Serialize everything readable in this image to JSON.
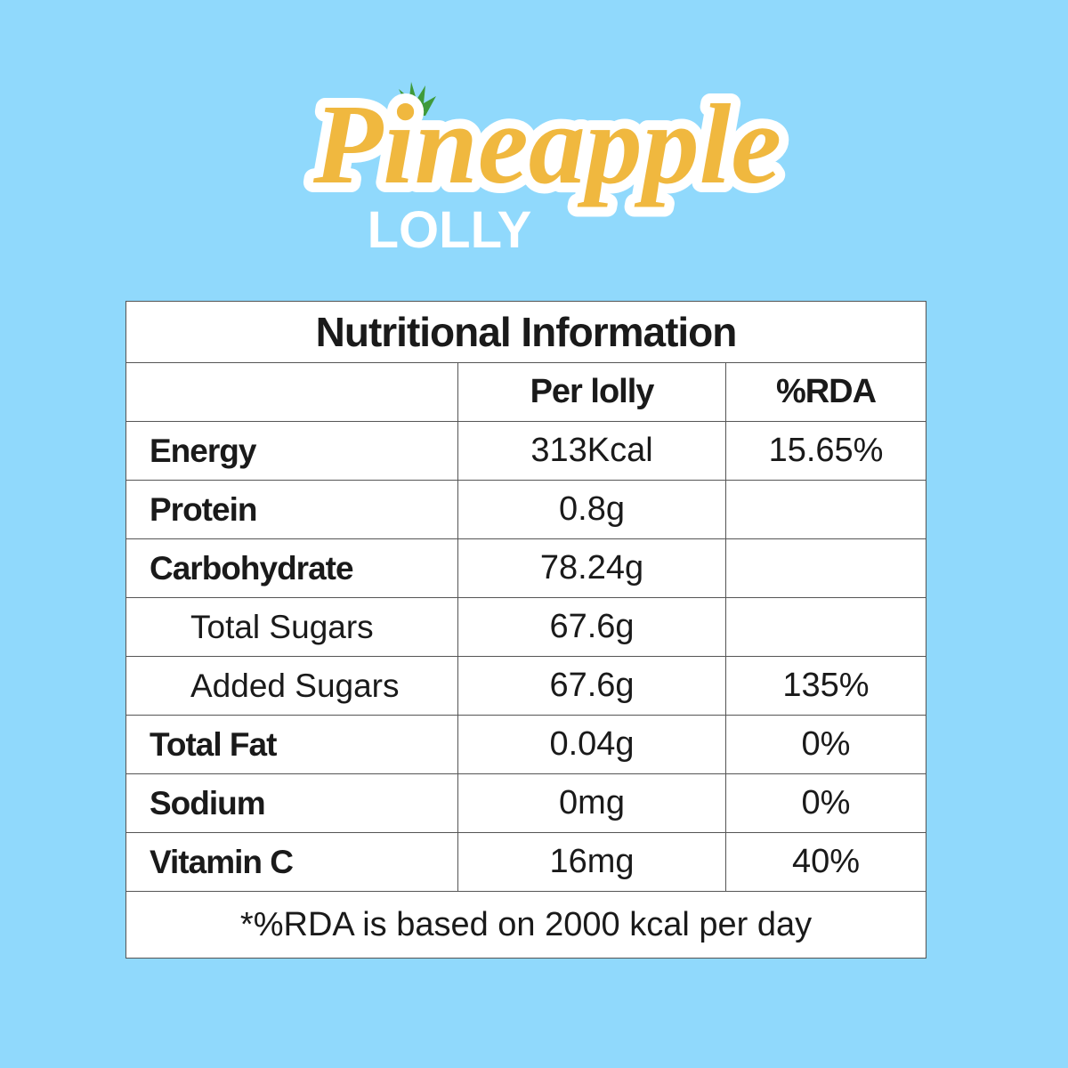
{
  "header": {
    "title": "Pineapple",
    "subtitle": "LOLLY"
  },
  "table": {
    "title": "Nutritional Information",
    "columns": [
      "Per lolly",
      "%RDA"
    ],
    "rows": [
      {
        "name": "Energy",
        "amount": "313Kcal",
        "rda": "15.65%"
      },
      {
        "name": "Protein",
        "amount": "0.8g"
      },
      {
        "name": "Carbohydrate",
        "amount": "78.24g"
      },
      {
        "name": "Total Sugars",
        "amount": "67.6g",
        "indent": true
      },
      {
        "name": "Added Sugars",
        "amount": "67.6g",
        "rda": "135%",
        "indent": true
      },
      {
        "name": "Total Fat",
        "amount": "0.04g",
        "rda": "0%"
      },
      {
        "name": "Sodium",
        "amount": "0mg",
        "rda": "0%"
      },
      {
        "name": "Vitamin C",
        "amount": "16mg",
        "rda": "40%"
      }
    ],
    "footnote": "*%RDA is based on 2000 kcal per day"
  }
}
